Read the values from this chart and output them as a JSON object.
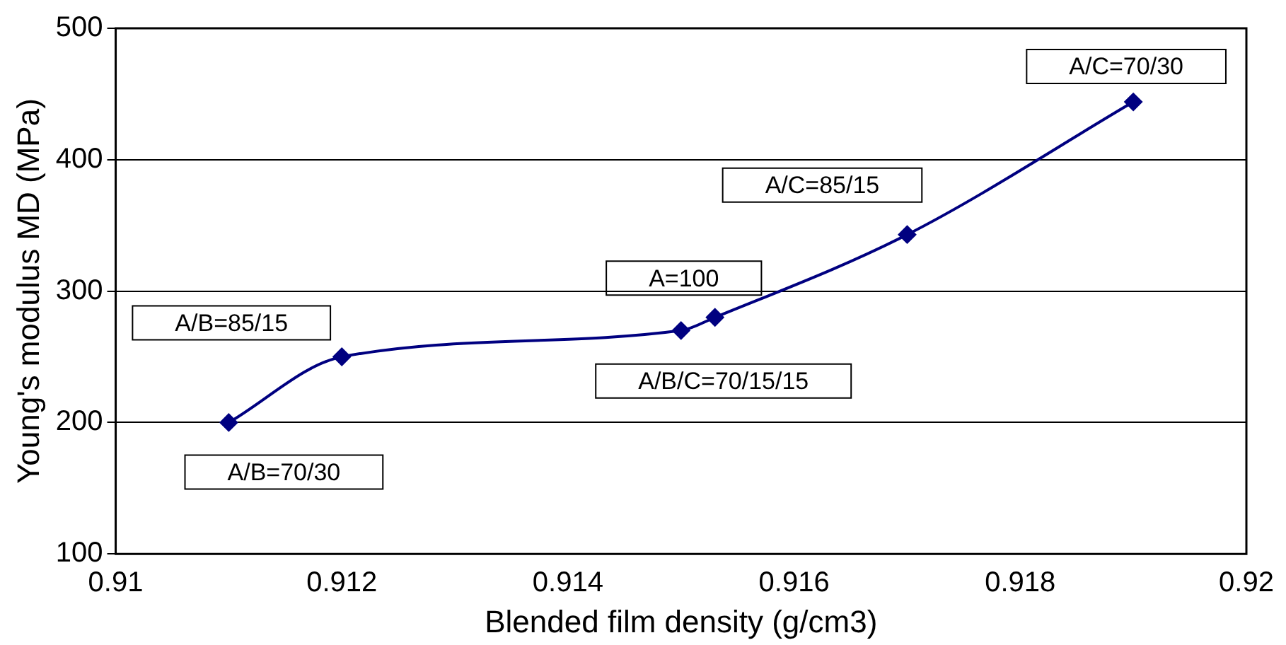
{
  "chart_data": {
    "type": "line",
    "xlabel": "Blended film density (g/cm3)",
    "ylabel": "Young's modulus MD (MPa)",
    "x": [
      0.911,
      0.912,
      0.915,
      0.9153,
      0.917,
      0.919
    ],
    "series": [
      {
        "color": "#000080",
        "values": [
          200,
          250,
          270,
          280,
          343,
          444
        ]
      }
    ],
    "xlim": [
      0.91,
      0.92
    ],
    "xticks": [
      0.91,
      0.912,
      0.914,
      0.916,
      0.918,
      0.92
    ],
    "ylim": [
      100,
      500
    ],
    "yticks": [
      100,
      200,
      300,
      400,
      500
    ],
    "grid": "y",
    "legend": false,
    "marker": "diamond",
    "line_style": "solid",
    "annotations": [
      {
        "text": "A/B=70/30",
        "x": 0.911,
        "y": 200
      },
      {
        "text": "A/B=85/15",
        "x": 0.912,
        "y": 250
      },
      {
        "text": "A=100",
        "x": 0.915,
        "y": 270
      },
      {
        "text": "A/B/C=70/15/15",
        "x": 0.9153,
        "y": 280
      },
      {
        "text": "A/C=85/15",
        "x": 0.917,
        "y": 343
      },
      {
        "text": "A/C=70/30",
        "x": 0.919,
        "y": 444
      }
    ]
  }
}
